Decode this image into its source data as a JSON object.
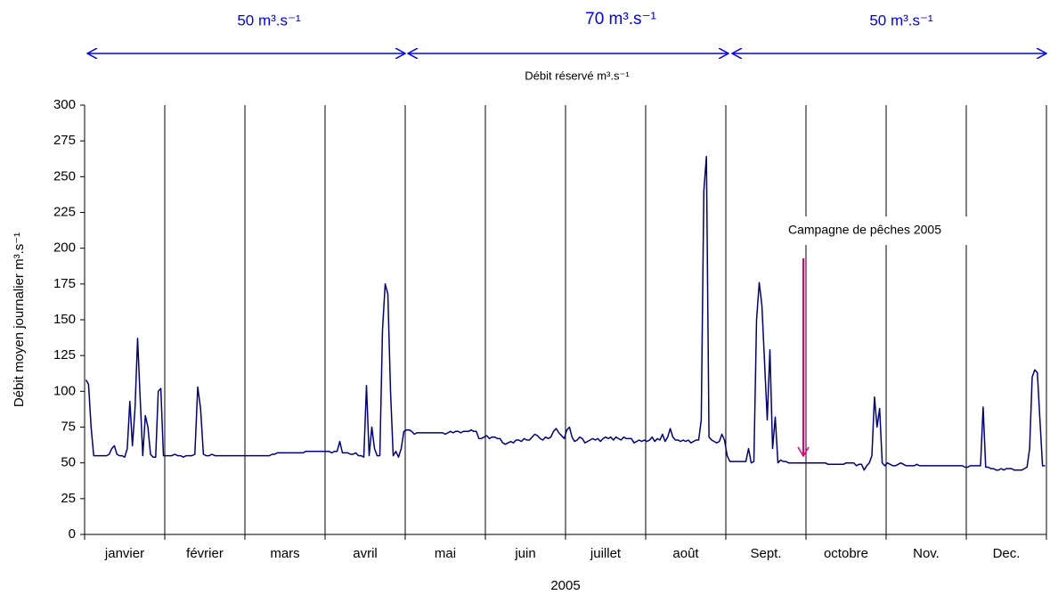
{
  "chart_data": {
    "type": "line",
    "period_labels": [
      "50 m³.s⁻¹",
      "70 m³.s⁻¹",
      "50 m³.s⁻¹"
    ],
    "period_caption": "Débit réservé m³.s⁻¹",
    "annotation": "Campagne de pêches 2005",
    "y_label": "Débit moyen journalier m³.s⁻¹",
    "x_label": "2005",
    "categories": [
      "janvier",
      "février",
      "mars",
      "avril",
      "mai",
      "juin",
      "juillet",
      "août",
      "Sept.",
      "octobre",
      "Nov.",
      "Dec."
    ],
    "ylim": [
      0,
      300
    ],
    "yticks": [
      0,
      25,
      50,
      75,
      100,
      125,
      150,
      175,
      200,
      225,
      250,
      275,
      300
    ],
    "grid": true,
    "series": [
      {
        "color": "#000080",
        "values": [
          [
            108,
            105,
            75,
            55,
            55,
            55,
            55,
            55,
            55,
            56,
            60,
            62,
            56,
            55,
            55,
            54,
            60,
            93,
            62,
            88,
            137,
            95,
            55,
            83,
            75,
            56,
            54,
            54,
            100,
            102,
            55
          ],
          [
            55,
            55,
            55,
            56,
            55,
            55,
            54,
            55,
            55,
            55,
            56,
            103,
            88,
            56,
            55,
            55,
            56,
            55,
            55,
            55,
            55,
            55,
            55,
            55,
            55,
            55,
            55,
            55
          ],
          [
            55,
            55,
            55,
            55,
            55,
            55,
            55,
            55,
            55,
            55,
            56,
            56,
            57,
            57,
            57,
            57,
            57,
            57,
            57,
            57,
            57,
            57,
            57,
            58,
            58,
            58,
            58,
            58,
            58,
            58,
            58
          ],
          [
            58,
            58,
            57,
            58,
            58,
            65,
            57,
            57,
            57,
            56,
            56,
            57,
            55,
            55,
            54,
            104,
            55,
            75,
            60,
            55,
            55,
            143,
            175,
            168,
            100,
            55,
            58,
            54,
            60,
            72
          ],
          [
            73,
            73,
            72,
            70,
            71,
            71,
            71,
            71,
            71,
            71,
            71,
            71,
            71,
            71,
            71,
            70,
            71,
            72,
            71,
            72,
            72,
            71,
            72,
            72,
            72,
            73,
            72,
            72,
            67,
            67,
            68
          ],
          [
            69,
            67,
            68,
            68,
            67,
            67,
            64,
            63,
            64,
            65,
            64,
            66,
            66,
            65,
            67,
            66,
            66,
            68,
            70,
            69,
            67,
            66,
            68,
            67,
            68,
            72,
            74,
            71,
            69,
            67
          ],
          [
            73,
            75,
            68,
            65,
            66,
            68,
            67,
            64,
            65,
            66,
            67,
            66,
            67,
            65,
            67,
            68,
            67,
            68,
            66,
            68,
            67,
            66,
            68,
            67,
            67,
            67,
            64,
            65,
            66,
            65,
            66
          ],
          [
            65,
            66,
            68,
            65,
            67,
            66,
            70,
            65,
            68,
            74,
            68,
            66,
            66,
            65,
            66,
            65,
            66,
            64,
            65,
            66,
            66,
            80,
            240,
            264,
            68,
            66,
            65,
            64,
            65,
            70,
            66
          ],
          [
            55,
            51,
            51,
            51,
            51,
            51,
            51,
            51,
            60,
            50,
            51,
            150,
            176,
            160,
            120,
            80,
            129,
            60,
            82,
            50,
            52,
            51,
            51,
            50,
            50,
            50,
            50,
            50,
            50,
            50
          ],
          [
            50,
            50,
            50,
            50,
            50,
            50,
            50,
            50,
            49,
            49,
            49,
            49,
            49,
            49,
            49,
            50,
            50,
            50,
            50,
            48,
            49,
            49,
            45,
            48,
            50,
            55,
            96,
            75,
            88,
            50,
            48
          ],
          [
            50,
            49,
            48,
            48,
            49,
            50,
            49,
            48,
            48,
            48,
            48,
            49,
            48,
            48,
            48,
            48,
            48,
            48,
            48,
            48,
            48,
            48,
            48,
            48,
            48,
            48,
            48,
            48,
            48,
            47
          ],
          [
            47,
            48,
            48,
            48,
            48,
            48,
            89,
            47,
            47,
            46,
            46,
            45,
            45,
            46,
            45,
            46,
            46,
            46,
            45,
            45,
            45,
            45,
            46,
            47,
            60,
            110,
            115,
            113,
            80,
            48,
            48
          ]
        ]
      }
    ]
  }
}
